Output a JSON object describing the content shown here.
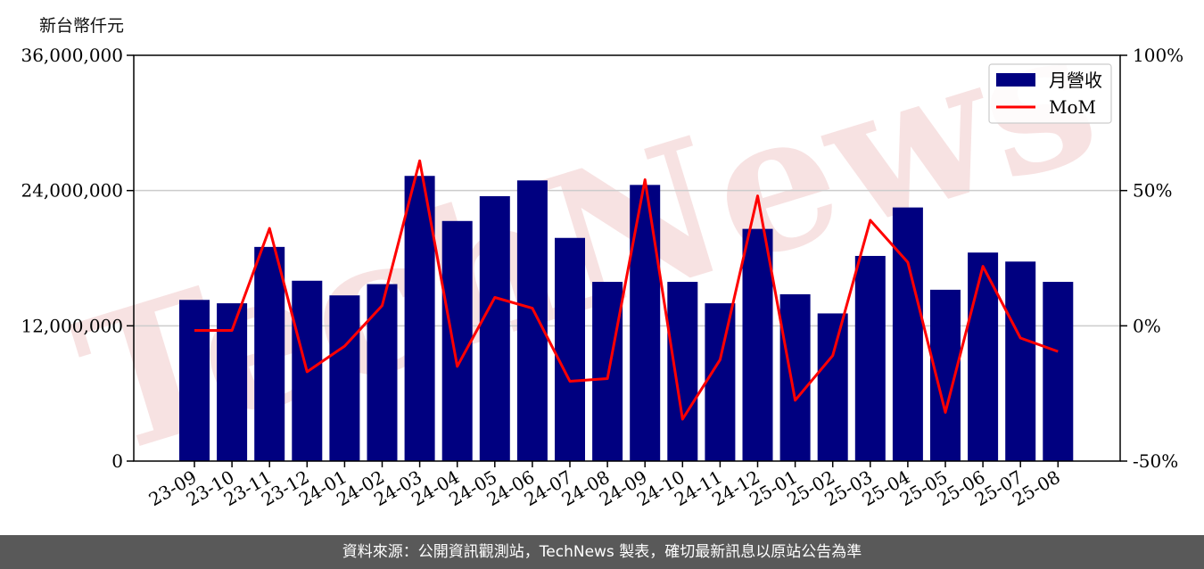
{
  "y_unit_label": "新台幣仟元",
  "footer_text": "資料來源：公開資訊觀測站，TechNews 製表，確切最新訊息以原站公告為準",
  "watermark_text": "TechNews",
  "colors": {
    "bar": "#000080",
    "line": "#ff0000",
    "footer_bg": "#595959",
    "watermark": "#f2cccc"
  },
  "chart_data": {
    "type": "bar",
    "categories": [
      "23-09",
      "23-10",
      "23-11",
      "23-12",
      "24-01",
      "24-02",
      "24-03",
      "24-04",
      "24-05",
      "24-06",
      "24-07",
      "24-08",
      "24-09",
      "24-10",
      "24-11",
      "24-12",
      "25-01",
      "25-02",
      "25-03",
      "25-04",
      "25-05",
      "25-06",
      "25-07",
      "25-08"
    ],
    "series": [
      {
        "name": "月營收",
        "type": "bar",
        "axis": "left",
        "values": [
          14300000,
          14000000,
          19000000,
          16000000,
          14700000,
          15700000,
          25300000,
          21300000,
          23500000,
          24900000,
          19800000,
          15900000,
          24500000,
          15900000,
          14000000,
          20600000,
          14800000,
          13100000,
          18200000,
          22500000,
          15200000,
          18500000,
          17700000,
          15900000
        ]
      },
      {
        "name": "MoM",
        "type": "line",
        "axis": "right",
        "values": [
          -1.7,
          -1.7,
          36,
          -17,
          -7.5,
          7.5,
          61,
          -15,
          10.5,
          6.5,
          -20.5,
          -19.5,
          54,
          -34.5,
          -12.5,
          48,
          -27.5,
          -11,
          39,
          23.5,
          -32,
          22,
          -4.5,
          -9.5
        ]
      }
    ],
    "left_axis": {
      "ylim": [
        0,
        36000000
      ],
      "ticks": [
        "0",
        "12,000,000",
        "24,000,000",
        "36,000,000"
      ]
    },
    "right_axis": {
      "ylim": [
        -50,
        100
      ],
      "ticks": [
        "-50%",
        "0%",
        "50%",
        "100%"
      ]
    },
    "grid": "horizontal",
    "legend": {
      "position": "top-right",
      "entries": [
        "月營收",
        "MoM"
      ]
    }
  }
}
